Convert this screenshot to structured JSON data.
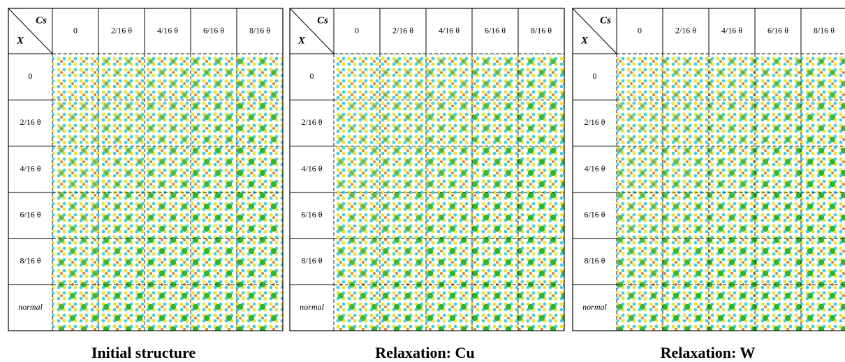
{
  "panels": [
    {
      "title": "Initial structure",
      "corner_top": "Cs",
      "corner_left": "X",
      "columns": [
        "0",
        "2/16 θ",
        "4/16 θ",
        "6/16 θ",
        "8/16 θ"
      ],
      "rows": [
        "0",
        "2/16 θ",
        "4/16 θ",
        "6/16 θ",
        "8/16 θ",
        "normal"
      ]
    },
    {
      "title": "Relaxation: Cu",
      "corner_top": "Cs",
      "corner_left": "X",
      "columns": [
        "0",
        "2/16 θ",
        "4/16 θ",
        "6/16 θ",
        "8/16 θ"
      ],
      "rows": [
        "0",
        "2/16 θ",
        "4/16 θ",
        "6/16 θ",
        "8/16 θ",
        "normal"
      ]
    },
    {
      "title": "Relaxation: W",
      "corner_top": "Cs",
      "corner_left": "X",
      "columns": [
        "0",
        "2/16 θ",
        "4/16 θ",
        "6/16 θ",
        "8/16 θ"
      ],
      "rows": [
        "0",
        "2/16 θ",
        "4/16 θ",
        "6/16 θ",
        "8/16 θ",
        "normal"
      ]
    }
  ]
}
